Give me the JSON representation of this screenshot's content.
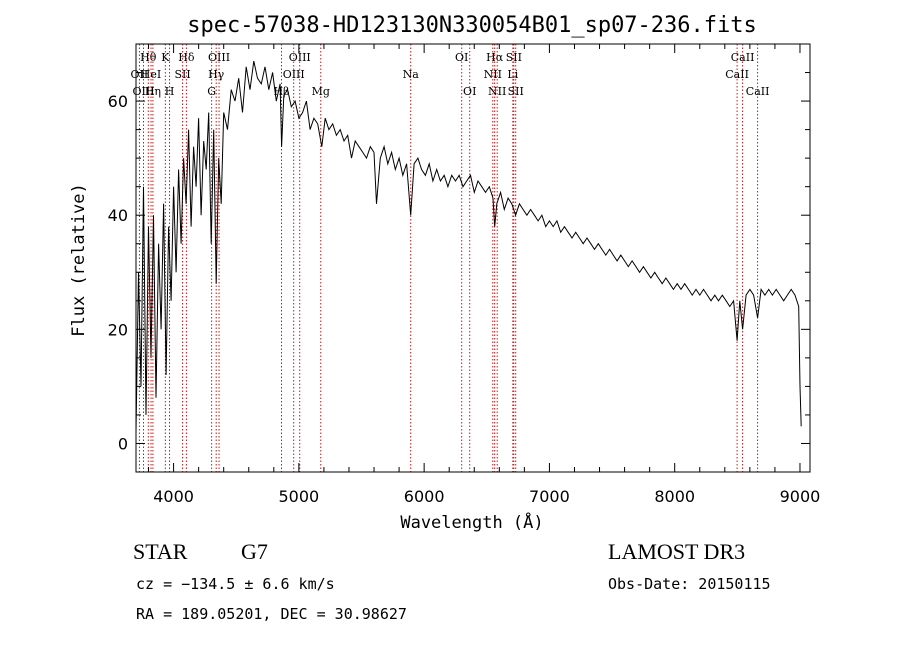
{
  "chart_data": {
    "type": "line",
    "title": "spec-57038-HD123130N330054B01_sp07-236.fits",
    "xlabel": "Wavelength (Å)",
    "ylabel": "Flux (relative)",
    "xlim": [
      3700,
      9080
    ],
    "ylim": [
      -5,
      70
    ],
    "xticks": [
      4000,
      5000,
      6000,
      7000,
      8000,
      9000
    ],
    "yticks": [
      0,
      20,
      40,
      60
    ],
    "series": [
      {
        "name": "spectrum",
        "x": [
          3700,
          3720,
          3740,
          3760,
          3780,
          3800,
          3820,
          3840,
          3860,
          3880,
          3900,
          3920,
          3940,
          3960,
          3980,
          4000,
          4020,
          4040,
          4060,
          4080,
          4100,
          4120,
          4140,
          4160,
          4180,
          4200,
          4220,
          4240,
          4260,
          4280,
          4300,
          4320,
          4340,
          4360,
          4380,
          4400,
          4430,
          4460,
          4490,
          4520,
          4550,
          4580,
          4610,
          4640,
          4670,
          4700,
          4730,
          4760,
          4790,
          4820,
          4850,
          4862,
          4880,
          4910,
          4940,
          4970,
          5000,
          5030,
          5060,
          5090,
          5120,
          5150,
          5183,
          5210,
          5240,
          5270,
          5300,
          5330,
          5360,
          5390,
          5420,
          5450,
          5480,
          5510,
          5540,
          5570,
          5600,
          5620,
          5650,
          5680,
          5710,
          5740,
          5770,
          5800,
          5830,
          5860,
          5893,
          5920,
          5950,
          5980,
          6010,
          6040,
          6070,
          6100,
          6130,
          6160,
          6190,
          6220,
          6250,
          6280,
          6310,
          6340,
          6370,
          6400,
          6430,
          6460,
          6490,
          6520,
          6550,
          6563,
          6580,
          6610,
          6640,
          6670,
          6700,
          6730,
          6760,
          6790,
          6820,
          6850,
          6880,
          6910,
          6940,
          6970,
          7000,
          7030,
          7060,
          7090,
          7120,
          7150,
          7180,
          7210,
          7240,
          7270,
          7300,
          7330,
          7360,
          7390,
          7420,
          7450,
          7480,
          7510,
          7540,
          7570,
          7600,
          7630,
          7660,
          7690,
          7720,
          7750,
          7780,
          7810,
          7840,
          7870,
          7900,
          7930,
          7960,
          7990,
          8020,
          8050,
          8080,
          8110,
          8140,
          8170,
          8200,
          8230,
          8260,
          8290,
          8320,
          8350,
          8380,
          8410,
          8440,
          8470,
          8498,
          8520,
          8542,
          8570,
          8600,
          8630,
          8662,
          8690,
          8720,
          8750,
          8780,
          8810,
          8840,
          8870,
          8900,
          8930,
          8960,
          8990,
          9000,
          9010
        ],
        "values": [
          2,
          30,
          10,
          45,
          5,
          38,
          15,
          40,
          8,
          35,
          20,
          42,
          12,
          38,
          25,
          45,
          30,
          48,
          35,
          50,
          42,
          55,
          38,
          52,
          45,
          57,
          40,
          53,
          48,
          58,
          35,
          55,
          28,
          50,
          42,
          58,
          55,
          62,
          60,
          64,
          58,
          66,
          62,
          67,
          64,
          63,
          66,
          62,
          65,
          60,
          63,
          52,
          61,
          62,
          59,
          60,
          57,
          58,
          60,
          55,
          57,
          56,
          52,
          57,
          55,
          56,
          54,
          55,
          53,
          54,
          50,
          53,
          52,
          51,
          50,
          52,
          51,
          42,
          50,
          52,
          49,
          51,
          48,
          50,
          47,
          49,
          40,
          49,
          50,
          48,
          47,
          49,
          46,
          48,
          46,
          47,
          45,
          47,
          46,
          47,
          45,
          46,
          47,
          44,
          46,
          45,
          44,
          45,
          43,
          38,
          42,
          44,
          41,
          43,
          42,
          40,
          42,
          41,
          40,
          41,
          40,
          39,
          40,
          38,
          39,
          38,
          39,
          37,
          38,
          37,
          36,
          37,
          36,
          35,
          36,
          35,
          34,
          35,
          34,
          33,
          34,
          33,
          32,
          33,
          32,
          31,
          32,
          31,
          30,
          31,
          30,
          29,
          30,
          29,
          28,
          29,
          28,
          27,
          28,
          27,
          28,
          27,
          26,
          27,
          26,
          27,
          26,
          25,
          26,
          25,
          26,
          25,
          24,
          25,
          18,
          25,
          20,
          26,
          27,
          26,
          22,
          27,
          26,
          27,
          26,
          27,
          26,
          25,
          26,
          27,
          26,
          24,
          10,
          3
        ]
      }
    ],
    "spectral_lines": [
      {
        "label": "Hθ",
        "wavelength": 3798,
        "row": 1
      },
      {
        "label": "OII",
        "wavelength": 3727,
        "row": 2
      },
      {
        "label": "HeI",
        "wavelength": 3820,
        "row": 2
      },
      {
        "label": "OIII",
        "wavelength": 3760,
        "row": 3
      },
      {
        "label": "Hη",
        "wavelength": 3835,
        "row": 3
      },
      {
        "label": "K",
        "wavelength": 3934,
        "row": 1
      },
      {
        "label": "SII",
        "wavelength": 4072,
        "row": 2
      },
      {
        "label": "H",
        "wavelength": 3968,
        "row": 3
      },
      {
        "label": "Hδ",
        "wavelength": 4102,
        "row": 1
      },
      {
        "label": "OIII",
        "wavelength": 4363,
        "row": 1
      },
      {
        "label": "Hγ",
        "wavelength": 4340,
        "row": 2
      },
      {
        "label": "G",
        "wavelength": 4304,
        "row": 3
      },
      {
        "label": "OIII",
        "wavelength": 5007,
        "row": 1
      },
      {
        "label": "OIII",
        "wavelength": 4959,
        "row": 2
      },
      {
        "label": "Hβ",
        "wavelength": 4861,
        "row": 3
      },
      {
        "label": "Mg",
        "wavelength": 5175,
        "row": 3
      },
      {
        "label": "Na",
        "wavelength": 5893,
        "row": 2
      },
      {
        "label": "OI",
        "wavelength": 6300,
        "row": 1
      },
      {
        "label": "OI",
        "wavelength": 6364,
        "row": 3
      },
      {
        "label": "Hα",
        "wavelength": 6563,
        "row": 1
      },
      {
        "label": "SII",
        "wavelength": 6716,
        "row": 1
      },
      {
        "label": "NII",
        "wavelength": 6548,
        "row": 2
      },
      {
        "label": "Li",
        "wavelength": 6708,
        "row": 2
      },
      {
        "label": "NII",
        "wavelength": 6583,
        "row": 3
      },
      {
        "label": "SII",
        "wavelength": 6731,
        "row": 3
      },
      {
        "label": "CaII",
        "wavelength": 8542,
        "row": 1
      },
      {
        "label": "CaII",
        "wavelength": 8498,
        "row": 2
      },
      {
        "label": "CaII",
        "wavelength": 8662,
        "row": 3
      }
    ]
  },
  "info": {
    "class": "STAR",
    "subclass": "G7",
    "survey": "LAMOST DR3",
    "cz": "cz = −134.5 ± 6.6 km/s",
    "obs_date": "Obs-Date: 20150115",
    "radec": "RA = 189.05201, DEC =  30.98627"
  }
}
